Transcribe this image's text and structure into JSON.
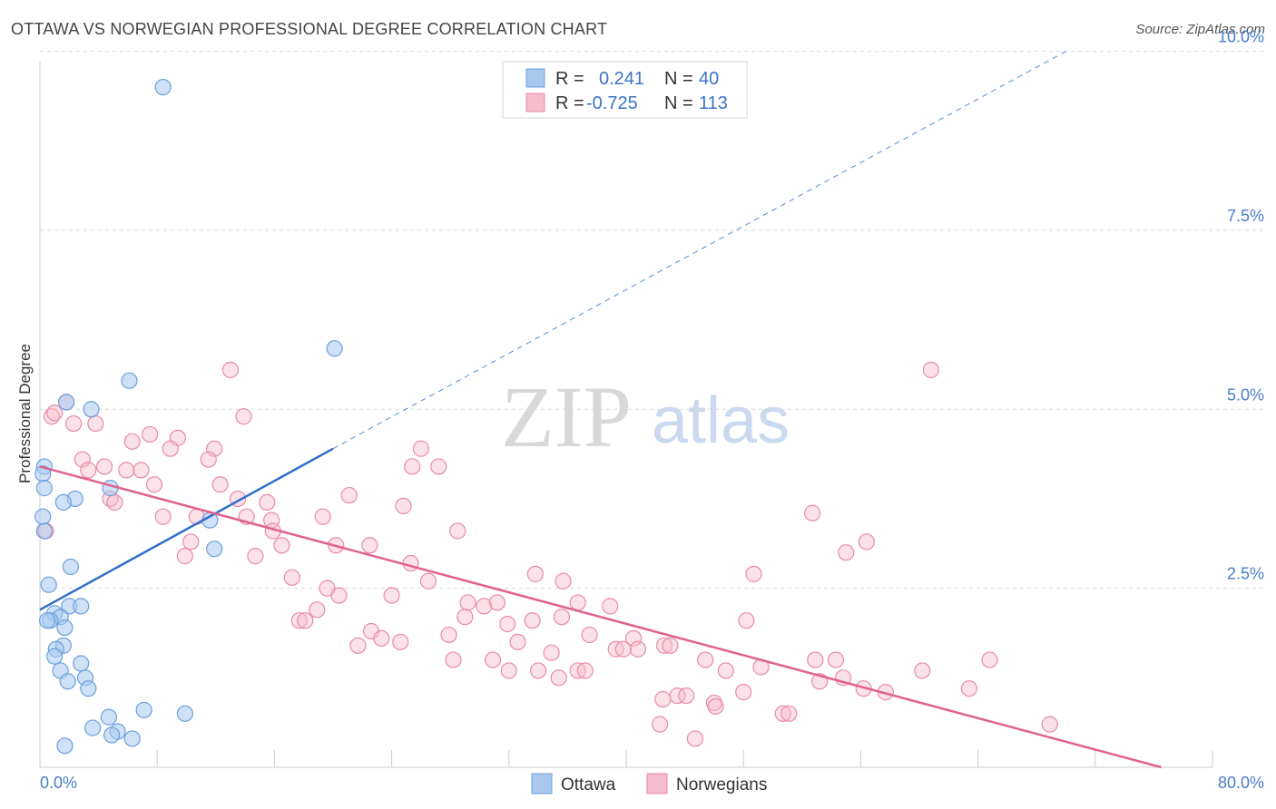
{
  "title": "OTTAWA VS NORWEGIAN PROFESSIONAL DEGREE CORRELATION CHART",
  "source": "Source: ZipAtlas.com",
  "watermark": {
    "zip": "ZIP",
    "atlas": "atlas"
  },
  "legend_top": {
    "series": [
      {
        "r_label": "R =",
        "r_value": "0.241",
        "n_label": "N =",
        "n_value": "40"
      },
      {
        "r_label": "R =",
        "r_value": "-0.725",
        "n_label": "N =",
        "n_value": "113"
      }
    ]
  },
  "colors": {
    "ottawa_fill": "#a8c8f0",
    "ottawa_stroke": "#6c9fdc",
    "ottawa_line": "#2f6fcb",
    "norw_fill": "#f6bccd",
    "norw_stroke": "#e98aa9",
    "norw_line": "#e0618d",
    "grid": "#d9d9d9",
    "tick_text": "#4a7cc7"
  },
  "chart_data": {
    "type": "scatter",
    "title": "OTTAWA VS NORWEGIAN PROFESSIONAL DEGREE CORRELATION CHART",
    "xlabel": "",
    "ylabel": "Professional Degree",
    "xlim": [
      0,
      80
    ],
    "ylim": [
      0,
      10.5
    ],
    "x_tick_labels": [
      "0.0%",
      "80.0%"
    ],
    "y_ticks": [
      2.5,
      5.0,
      7.5,
      10.0
    ],
    "y_tick_labels": [
      "2.5%",
      "5.0%",
      "7.5%",
      "10.0%"
    ],
    "grid": true,
    "legend_position": "bottom-center",
    "series": [
      {
        "name": "Ottawa",
        "r": 0.241,
        "n": 40,
        "trend": {
          "x_start": 0,
          "y_start": 2.2,
          "x_solid_end": 20,
          "y_solid_end": 4.45,
          "x_dash_end": 70,
          "y_dash_end": 10.0
        },
        "points": [
          [
            8.4,
            9.5
          ],
          [
            20.1,
            5.85
          ],
          [
            6.1,
            5.4
          ],
          [
            3.5,
            5.0
          ],
          [
            1.8,
            5.1
          ],
          [
            0.3,
            4.2
          ],
          [
            0.2,
            4.1
          ],
          [
            0.3,
            3.9
          ],
          [
            4.8,
            3.9
          ],
          [
            2.4,
            3.75
          ],
          [
            1.6,
            3.7
          ],
          [
            11.6,
            3.45
          ],
          [
            0.2,
            3.5
          ],
          [
            0.3,
            3.3
          ],
          [
            11.9,
            3.05
          ],
          [
            2.1,
            2.8
          ],
          [
            0.6,
            2.55
          ],
          [
            2.0,
            2.25
          ],
          [
            2.8,
            2.25
          ],
          [
            1.0,
            2.15
          ],
          [
            1.4,
            2.1
          ],
          [
            0.7,
            2.05
          ],
          [
            0.5,
            2.05
          ],
          [
            1.7,
            1.95
          ],
          [
            1.6,
            1.7
          ],
          [
            1.1,
            1.65
          ],
          [
            1.0,
            1.55
          ],
          [
            2.8,
            1.45
          ],
          [
            1.4,
            1.35
          ],
          [
            3.1,
            1.25
          ],
          [
            1.9,
            1.2
          ],
          [
            3.3,
            1.1
          ],
          [
            7.1,
            0.8
          ],
          [
            9.9,
            0.75
          ],
          [
            4.7,
            0.7
          ],
          [
            3.6,
            0.55
          ],
          [
            5.3,
            0.5
          ],
          [
            4.9,
            0.45
          ],
          [
            6.3,
            0.4
          ],
          [
            1.7,
            0.3
          ]
        ]
      },
      {
        "name": "Norwegians",
        "r": -0.725,
        "n": 113,
        "trend": {
          "x_start": 0,
          "y_start": 4.2,
          "x_end": 76.5,
          "y_end": 0.0
        },
        "points": [
          [
            0.8,
            4.9
          ],
          [
            1.0,
            4.95
          ],
          [
            1.8,
            5.1
          ],
          [
            2.3,
            4.8
          ],
          [
            3.8,
            4.8
          ],
          [
            0.4,
            3.3
          ],
          [
            13.0,
            5.55
          ],
          [
            13.9,
            4.9
          ],
          [
            7.5,
            4.65
          ],
          [
            6.3,
            4.55
          ],
          [
            9.4,
            4.6
          ],
          [
            8.9,
            4.45
          ],
          [
            11.9,
            4.45
          ],
          [
            2.9,
            4.3
          ],
          [
            11.5,
            4.3
          ],
          [
            4.4,
            4.2
          ],
          [
            5.9,
            4.15
          ],
          [
            6.9,
            4.15
          ],
          [
            3.3,
            4.15
          ],
          [
            7.8,
            3.95
          ],
          [
            12.3,
            3.95
          ],
          [
            4.8,
            3.75
          ],
          [
            5.1,
            3.7
          ],
          [
            13.5,
            3.75
          ],
          [
            15.5,
            3.7
          ],
          [
            21.1,
            3.8
          ],
          [
            24.8,
            3.65
          ],
          [
            26.0,
            4.45
          ],
          [
            25.4,
            4.2
          ],
          [
            27.2,
            4.2
          ],
          [
            8.4,
            3.5
          ],
          [
            10.7,
            3.5
          ],
          [
            14.1,
            3.5
          ],
          [
            15.8,
            3.45
          ],
          [
            19.3,
            3.5
          ],
          [
            15.9,
            3.3
          ],
          [
            28.5,
            3.3
          ],
          [
            10.3,
            3.15
          ],
          [
            16.5,
            3.1
          ],
          [
            20.2,
            3.1
          ],
          [
            22.5,
            3.1
          ],
          [
            9.9,
            2.95
          ],
          [
            14.7,
            2.95
          ],
          [
            52.7,
            3.55
          ],
          [
            55.0,
            3.0
          ],
          [
            56.4,
            3.15
          ],
          [
            60.8,
            5.55
          ],
          [
            25.3,
            2.85
          ],
          [
            17.2,
            2.65
          ],
          [
            26.5,
            2.6
          ],
          [
            33.8,
            2.7
          ],
          [
            35.7,
            2.6
          ],
          [
            48.7,
            2.7
          ],
          [
            19.6,
            2.5
          ],
          [
            20.4,
            2.4
          ],
          [
            24.0,
            2.4
          ],
          [
            29.2,
            2.3
          ],
          [
            30.3,
            2.25
          ],
          [
            31.2,
            2.3
          ],
          [
            36.7,
            2.3
          ],
          [
            38.9,
            2.25
          ],
          [
            18.9,
            2.2
          ],
          [
            17.7,
            2.05
          ],
          [
            18.1,
            2.05
          ],
          [
            29.0,
            2.1
          ],
          [
            33.6,
            2.05
          ],
          [
            35.6,
            2.1
          ],
          [
            31.9,
            2.0
          ],
          [
            48.2,
            2.05
          ],
          [
            22.6,
            1.9
          ],
          [
            23.3,
            1.8
          ],
          [
            27.9,
            1.85
          ],
          [
            37.5,
            1.85
          ],
          [
            40.5,
            1.8
          ],
          [
            21.7,
            1.7
          ],
          [
            24.6,
            1.75
          ],
          [
            32.6,
            1.75
          ],
          [
            39.3,
            1.65
          ],
          [
            40.8,
            1.65
          ],
          [
            42.6,
            1.7
          ],
          [
            43.0,
            1.7
          ],
          [
            34.9,
            1.6
          ],
          [
            39.8,
            1.65
          ],
          [
            28.2,
            1.5
          ],
          [
            30.9,
            1.5
          ],
          [
            45.4,
            1.5
          ],
          [
            52.9,
            1.5
          ],
          [
            54.3,
            1.5
          ],
          [
            64.8,
            1.5
          ],
          [
            32.0,
            1.35
          ],
          [
            34.0,
            1.35
          ],
          [
            36.7,
            1.35
          ],
          [
            37.2,
            1.35
          ],
          [
            46.8,
            1.35
          ],
          [
            49.2,
            1.4
          ],
          [
            60.2,
            1.35
          ],
          [
            35.4,
            1.25
          ],
          [
            53.2,
            1.2
          ],
          [
            54.8,
            1.25
          ],
          [
            56.2,
            1.1
          ],
          [
            57.7,
            1.05
          ],
          [
            63.4,
            1.1
          ],
          [
            42.5,
            0.95
          ],
          [
            43.5,
            1.0
          ],
          [
            44.1,
            1.0
          ],
          [
            48.0,
            1.05
          ],
          [
            46.0,
            0.9
          ],
          [
            46.1,
            0.85
          ],
          [
            50.7,
            0.75
          ],
          [
            51.1,
            0.75
          ],
          [
            42.3,
            0.6
          ],
          [
            44.7,
            0.4
          ],
          [
            68.9,
            0.6
          ]
        ]
      }
    ]
  },
  "bottom_legend": {
    "items": [
      "Ottawa",
      "Norwegians"
    ]
  }
}
